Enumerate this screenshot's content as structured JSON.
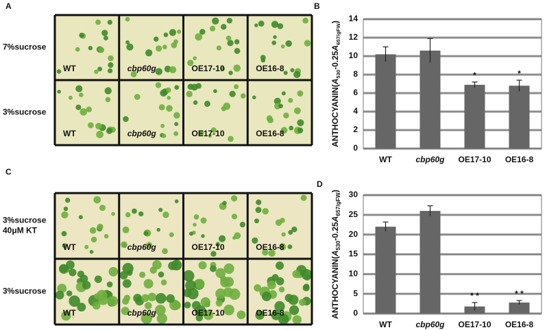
{
  "panel_labels": [
    "A",
    "B",
    "C",
    "D"
  ],
  "photo_panels": [
    {
      "columns": [
        "WT",
        "cbp60g",
        "OE17-10",
        "OE16-8"
      ],
      "column_styles": [
        "normal",
        "italic",
        "normal",
        "normal"
      ],
      "rows": [
        [
          "7%sucrose"
        ],
        [
          "3%sucrose"
        ]
      ],
      "tint": "#e9e7bd"
    },
    {
      "columns": [
        "WT",
        "cbp60g",
        "OE17-10",
        "OE16-8"
      ],
      "column_styles": [
        "normal",
        "italic",
        "normal",
        "normal"
      ],
      "rows": [
        [
          "3%sucrose",
          "40μM KT"
        ],
        [
          "3%sucrose"
        ]
      ],
      "tint": "#ece6c2"
    }
  ],
  "chart_data": [
    {
      "type": "bar",
      "categories": [
        "WT",
        "cbp60g",
        "OE17-10",
        "OE16-8"
      ],
      "category_styles": [
        "normal",
        "italic",
        "normal",
        "normal"
      ],
      "values": [
        10.2,
        10.6,
        6.9,
        6.8
      ],
      "errors": [
        0.8,
        1.3,
        0.3,
        0.6
      ],
      "annotations": [
        null,
        null,
        "*",
        "*"
      ],
      "color": "#666666",
      "ylim": [
        0,
        14
      ],
      "yticks": [
        0,
        2,
        4,
        6,
        8,
        10,
        12,
        14
      ],
      "grid": true,
      "ylabel": [
        {
          "text": "ANTHOCYANIN("
        },
        {
          "text": "A",
          "italic": true
        },
        {
          "text": "530",
          "sub": true
        },
        {
          "text": "-0.25"
        },
        {
          "text": "A",
          "italic": true
        },
        {
          "text": "657/gFW",
          "sub": true
        },
        {
          "text": ")"
        }
      ]
    },
    {
      "type": "bar",
      "categories": [
        "WT",
        "cbp60g",
        "OE17-10",
        "OE16-8"
      ],
      "category_styles": [
        "normal",
        "italic",
        "normal",
        "normal"
      ],
      "values": [
        22,
        26,
        1.8,
        2.8
      ],
      "errors": [
        1.2,
        1.3,
        1.0,
        0.5
      ],
      "annotations": [
        null,
        null,
        "* *",
        "* *"
      ],
      "color": "#666666",
      "ylim": [
        0,
        30
      ],
      "yticks": [
        0,
        5,
        10,
        15,
        20,
        25,
        30
      ],
      "grid": true,
      "ylabel": [
        {
          "text": "ANTHOCYANIN("
        },
        {
          "text": "A",
          "italic": true
        },
        {
          "text": "530",
          "sub": true
        },
        {
          "text": "-0.25"
        },
        {
          "text": "A",
          "italic": true
        },
        {
          "text": "657/gFW",
          "sub": true
        },
        {
          "text": ")"
        }
      ]
    }
  ]
}
